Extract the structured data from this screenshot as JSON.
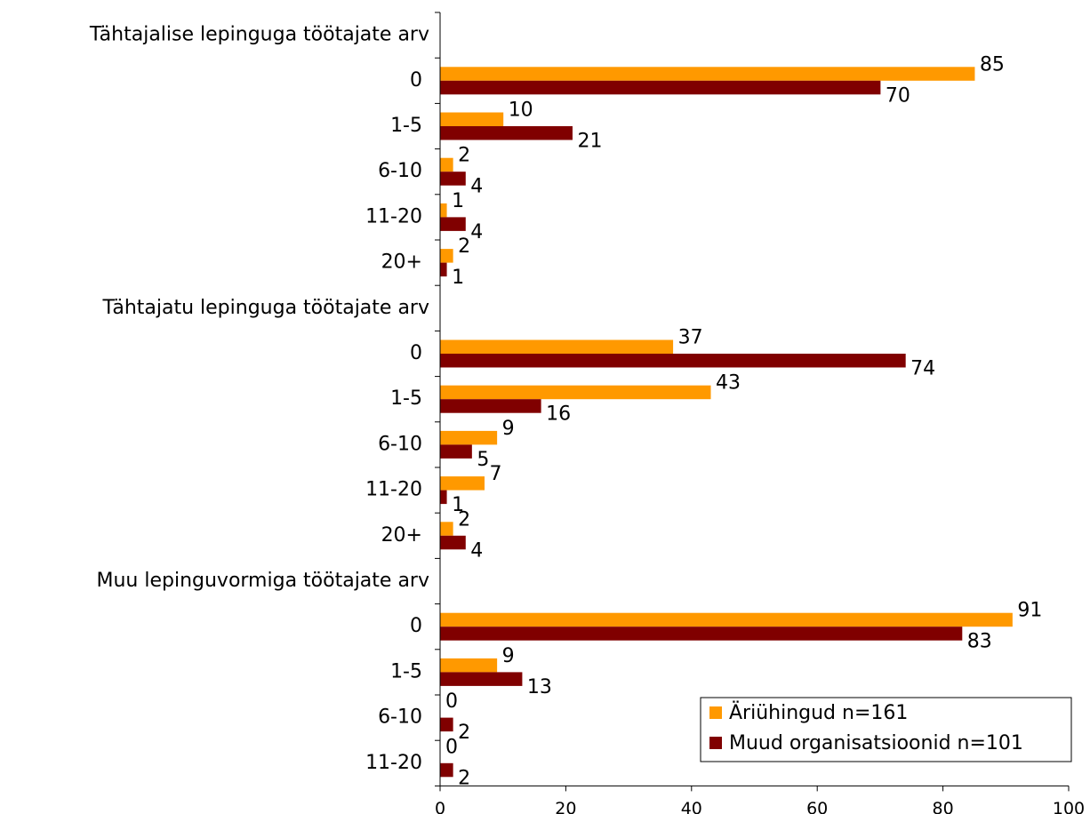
{
  "chart_data": {
    "type": "bar",
    "orientation": "horizontal",
    "xlim": [
      0,
      100
    ],
    "x_ticks": [
      0,
      20,
      40,
      60,
      80,
      100
    ],
    "grid": false,
    "legend_position": "bottom-right",
    "series": [
      {
        "name": "Äriühingud n=161",
        "color": "#FF9900"
      },
      {
        "name": "Muud organisatsioonid n=101",
        "color": "#800000"
      }
    ],
    "groups": [
      {
        "label": "Tähtajalise lepinguga töötajate arv",
        "categories": [
          {
            "label": "0",
            "values": [
              85,
              70
            ]
          },
          {
            "label": "1-5",
            "values": [
              10,
              21
            ]
          },
          {
            "label": "6-10",
            "values": [
              2,
              4
            ]
          },
          {
            "label": "11-20",
            "values": [
              1,
              4
            ]
          },
          {
            "label": "20+",
            "values": [
              2,
              1
            ]
          }
        ]
      },
      {
        "label": "Tähtajatu lepinguga töötajate arv",
        "categories": [
          {
            "label": "0",
            "values": [
              37,
              74
            ]
          },
          {
            "label": "1-5",
            "values": [
              43,
              16
            ]
          },
          {
            "label": "6-10",
            "values": [
              9,
              5
            ]
          },
          {
            "label": "11-20",
            "values": [
              7,
              1
            ]
          },
          {
            "label": "20+",
            "values": [
              2,
              4
            ]
          }
        ]
      },
      {
        "label": "Muu lepinguvormiga töötajate arv",
        "categories": [
          {
            "label": "0",
            "values": [
              91,
              83
            ]
          },
          {
            "label": "1-5",
            "values": [
              9,
              13
            ]
          },
          {
            "label": "6-10",
            "values": [
              0,
              2
            ]
          },
          {
            "label": "11-20",
            "values": [
              0,
              2
            ]
          }
        ]
      }
    ]
  }
}
